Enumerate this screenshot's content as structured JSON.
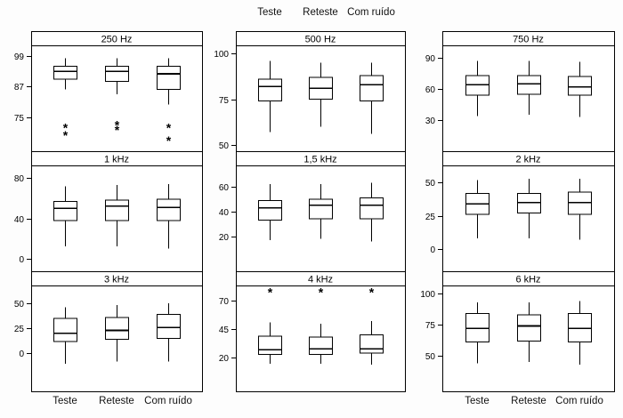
{
  "figure": {
    "background": "#ffffff",
    "line_color": "#000000",
    "conditions": [
      "Teste",
      "Reteste",
      "Com ruído"
    ]
  },
  "chart_data": [
    {
      "type": "boxplot",
      "title": "250 Hz",
      "col": 0,
      "row": 0,
      "ylim": [
        63,
        102
      ],
      "yticks": [
        99,
        87,
        75
      ],
      "groups": [
        "Teste",
        "Reteste",
        "Com ruído"
      ],
      "boxes": [
        {
          "whisker_low": 86,
          "q1": 90,
          "median": 93,
          "q3": 95,
          "whisker_high": 98,
          "outliers": [
            71,
            68
          ]
        },
        {
          "whisker_low": 84,
          "q1": 89,
          "median": 93,
          "q3": 95,
          "whisker_high": 98,
          "outliers": [
            72,
            70
          ]
        },
        {
          "whisker_low": 80,
          "q1": 86,
          "median": 92,
          "q3": 95,
          "whisker_high": 98,
          "outliers": [
            71,
            66
          ]
        }
      ]
    },
    {
      "type": "boxplot",
      "title": "500 Hz",
      "col": 1,
      "row": 0,
      "ylim": [
        48,
        103
      ],
      "yticks": [
        100,
        75,
        50
      ],
      "groups": [
        "Teste",
        "Reteste",
        "Com ruído"
      ],
      "boxes": [
        {
          "whisker_low": 57,
          "q1": 74,
          "median": 82,
          "q3": 86,
          "whisker_high": 96,
          "outliers": []
        },
        {
          "whisker_low": 60,
          "q1": 75,
          "median": 81,
          "q3": 87,
          "whisker_high": 95,
          "outliers": []
        },
        {
          "whisker_low": 56,
          "q1": 74,
          "median": 83,
          "q3": 88,
          "whisker_high": 95,
          "outliers": []
        }
      ]
    },
    {
      "type": "boxplot",
      "title": "750 Hz",
      "col": 2,
      "row": 0,
      "ylim": [
        2.5,
        99.5
      ],
      "yticks": [
        90,
        60,
        30
      ],
      "groups": [
        "Teste",
        "Reteste",
        "Com ruído"
      ],
      "boxes": [
        {
          "whisker_low": 34,
          "q1": 54,
          "median": 64,
          "q3": 73,
          "whisker_high": 87,
          "outliers": []
        },
        {
          "whisker_low": 35,
          "q1": 55,
          "median": 65,
          "q3": 73,
          "whisker_high": 87,
          "outliers": []
        },
        {
          "whisker_low": 33,
          "q1": 54,
          "median": 62,
          "q3": 72,
          "whisker_high": 86,
          "outliers": []
        }
      ]
    },
    {
      "type": "boxplot",
      "title": "1 kHz",
      "col": 0,
      "row": 1,
      "ylim": [
        -10,
        90
      ],
      "yticks": [
        80,
        40,
        0
      ],
      "groups": [
        "Teste",
        "Reteste",
        "Com ruído"
      ],
      "boxes": [
        {
          "whisker_low": 12,
          "q1": 38,
          "median": 50,
          "q3": 57,
          "whisker_high": 72,
          "outliers": []
        },
        {
          "whisker_low": 12,
          "q1": 38,
          "median": 52,
          "q3": 58,
          "whisker_high": 73,
          "outliers": []
        },
        {
          "whisker_low": 10,
          "q1": 38,
          "median": 51,
          "q3": 59,
          "whisker_high": 74,
          "outliers": []
        }
      ]
    },
    {
      "type": "boxplot",
      "title": "1,5 kHz",
      "col": 1,
      "row": 1,
      "ylim": [
        -6,
        75
      ],
      "yticks": [
        60,
        40,
        20
      ],
      "groups": [
        "Teste",
        "Reteste",
        "Com ruído"
      ],
      "boxes": [
        {
          "whisker_low": 17,
          "q1": 33,
          "median": 43,
          "q3": 49,
          "whisker_high": 62,
          "outliers": []
        },
        {
          "whisker_low": 18,
          "q1": 34,
          "median": 45,
          "q3": 50,
          "whisker_high": 62,
          "outliers": []
        },
        {
          "whisker_low": 16,
          "q1": 34,
          "median": 45,
          "q3": 51,
          "whisker_high": 63,
          "outliers": []
        }
      ]
    },
    {
      "type": "boxplot",
      "title": "2 kHz",
      "col": 2,
      "row": 1,
      "ylim": [
        -15,
        61
      ],
      "yticks": [
        50,
        25,
        0
      ],
      "groups": [
        "Teste",
        "Reteste",
        "Com ruído"
      ],
      "boxes": [
        {
          "whisker_low": 8,
          "q1": 26,
          "median": 34,
          "q3": 42,
          "whisker_high": 52,
          "outliers": []
        },
        {
          "whisker_low": 8,
          "q1": 27,
          "median": 35,
          "q3": 42,
          "whisker_high": 53,
          "outliers": []
        },
        {
          "whisker_low": 7,
          "q1": 26,
          "median": 35,
          "q3": 43,
          "whisker_high": 53,
          "outliers": []
        }
      ]
    },
    {
      "type": "boxplot",
      "title": "3 kHz",
      "col": 0,
      "row": 2,
      "ylim": [
        -35,
        65
      ],
      "yticks": [
        50,
        25,
        0
      ],
      "groups": [
        "Teste",
        "Reteste",
        "Com ruído"
      ],
      "boxes": [
        {
          "whisker_low": -10,
          "q1": 12,
          "median": 20,
          "q3": 35,
          "whisker_high": 46,
          "outliers": []
        },
        {
          "whisker_low": -8,
          "q1": 14,
          "median": 23,
          "q3": 36,
          "whisker_high": 48,
          "outliers": []
        },
        {
          "whisker_low": -8,
          "q1": 15,
          "median": 26,
          "q3": 39,
          "whisker_high": 50,
          "outliers": []
        }
      ]
    },
    {
      "type": "boxplot",
      "title": "4 kHz",
      "col": 1,
      "row": 2,
      "ylim": [
        -7,
        81
      ],
      "yticks": [
        70,
        45,
        20
      ],
      "groups": [
        "Teste",
        "Reteste",
        "Com ruído"
      ],
      "boxes": [
        {
          "whisker_low": 15,
          "q1": 23,
          "median": 27,
          "q3": 39,
          "whisker_high": 51,
          "outliers": [
            77
          ]
        },
        {
          "whisker_low": 15,
          "q1": 23,
          "median": 28,
          "q3": 38,
          "whisker_high": 50,
          "outliers": [
            77
          ]
        },
        {
          "whisker_low": 14,
          "q1": 24,
          "median": 28,
          "q3": 40,
          "whisker_high": 52,
          "outliers": [
            77
          ]
        }
      ]
    },
    {
      "type": "boxplot",
      "title": "6 kHz",
      "col": 2,
      "row": 2,
      "ylim": [
        23.5,
        104.5
      ],
      "yticks": [
        100,
        75,
        50
      ],
      "groups": [
        "Teste",
        "Reteste",
        "Com ruído"
      ],
      "boxes": [
        {
          "whisker_low": 44,
          "q1": 61,
          "median": 72,
          "q3": 84,
          "whisker_high": 93,
          "outliers": []
        },
        {
          "whisker_low": 45,
          "q1": 62,
          "median": 74,
          "q3": 83,
          "whisker_high": 93,
          "outliers": []
        },
        {
          "whisker_low": 43,
          "q1": 61,
          "median": 72,
          "q3": 84,
          "whisker_high": 94,
          "outliers": []
        }
      ]
    }
  ]
}
